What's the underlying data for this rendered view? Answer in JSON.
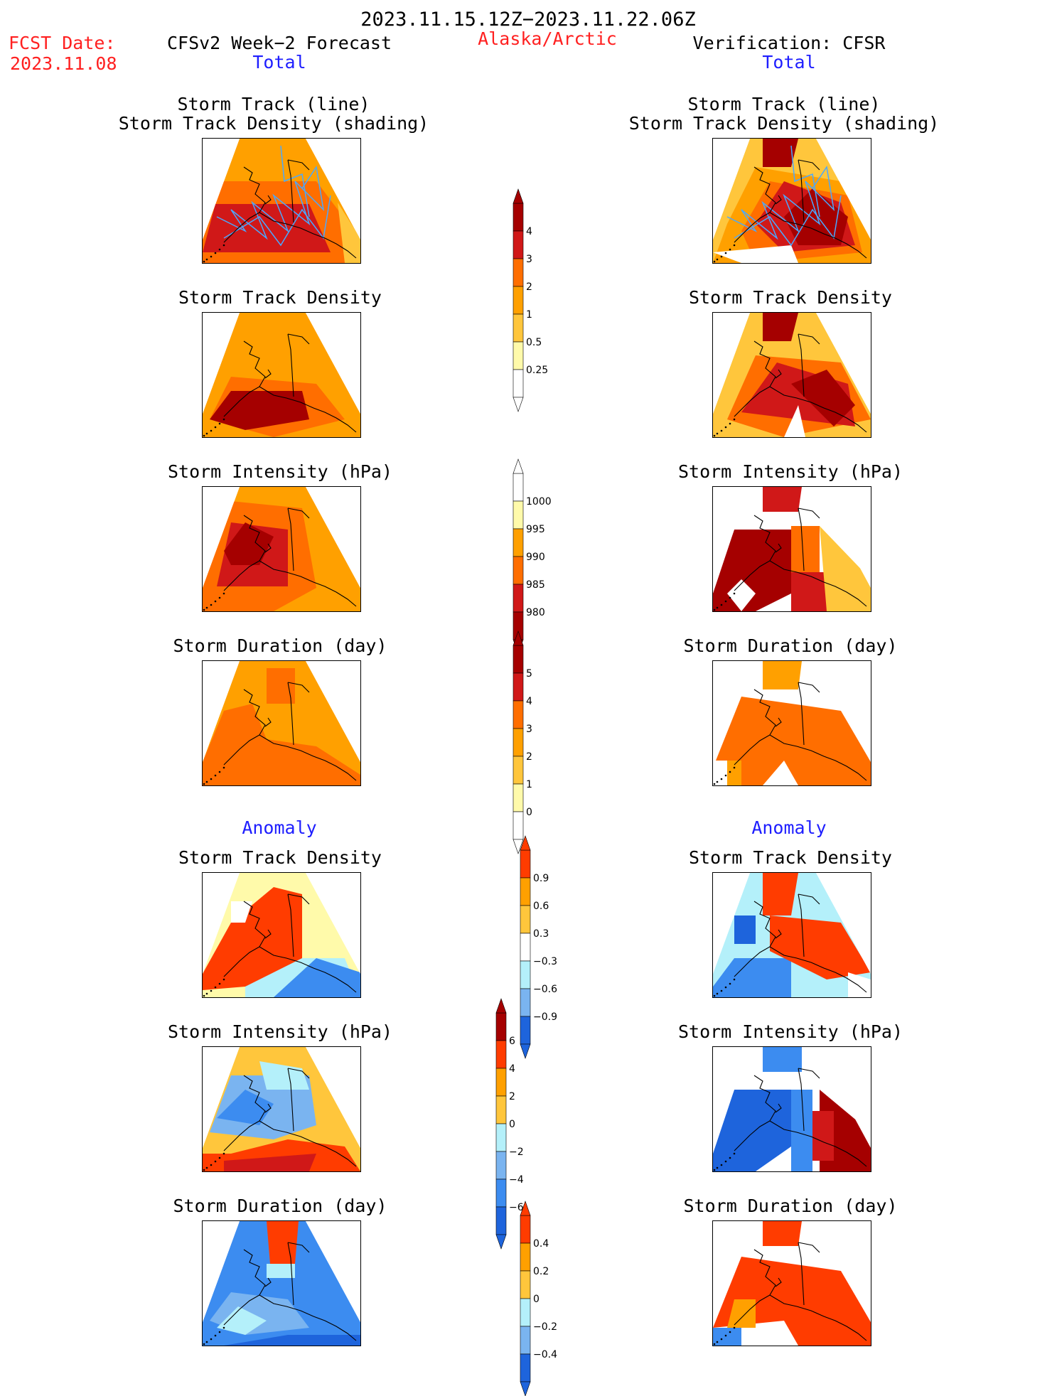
{
  "header": {
    "date_range": "2023.11.15.12Z−2023.11.22.06Z",
    "fcst_label": "FCST Date:",
    "fcst_date": "2023.11.08",
    "forecast_label": "CFSv2 Week−2 Forecast",
    "region": "Alaska/Arctic",
    "verification_label": "Verification: CFSR"
  },
  "sections": {
    "total": "Total",
    "anomaly": "Anomaly"
  },
  "panel_titles": {
    "track_line": "Storm Track (line)",
    "track_shading": "Storm Track Density (shading)",
    "density": "Storm Track Density",
    "intensity": "Storm Intensity (hPa)",
    "duration": "Storm Duration (day)"
  },
  "colors": {
    "dark_red": "#a50000",
    "red": "#d01818",
    "orange_red": "#ff3c00",
    "orange": "#ff6e00",
    "light_orange": "#ffa000",
    "amber": "#ffc63c",
    "light_yellow": "#fffaaa",
    "light_blue": "#b4f0fa",
    "sky_blue": "#7ab4f0",
    "mid_blue": "#3c8cf0",
    "dark_blue": "#1e64dc",
    "track_line": "#4aa8ff"
  },
  "colorbars": [
    {
      "id": "density_total",
      "labels": [
        "4",
        "3",
        "2",
        "1",
        "0.5",
        "0.25"
      ]
    },
    {
      "id": "intensity_total",
      "labels": [
        "1000",
        "995",
        "990",
        "985",
        "980"
      ]
    },
    {
      "id": "duration_total",
      "labels": [
        "5",
        "4",
        "3",
        "2",
        "1",
        "0"
      ]
    },
    {
      "id": "density_anom",
      "labels": [
        "0.9",
        "0.6",
        "0.3",
        "−0.3",
        "−0.6",
        "−0.9"
      ]
    },
    {
      "id": "intensity_anom",
      "labels": [
        "6",
        "4",
        "2",
        "0",
        "−2",
        "−4",
        "−6"
      ]
    },
    {
      "id": "duration_anom",
      "labels": [
        "0.4",
        "0.2",
        "0",
        "−0.2",
        "−0.4"
      ]
    }
  ]
}
